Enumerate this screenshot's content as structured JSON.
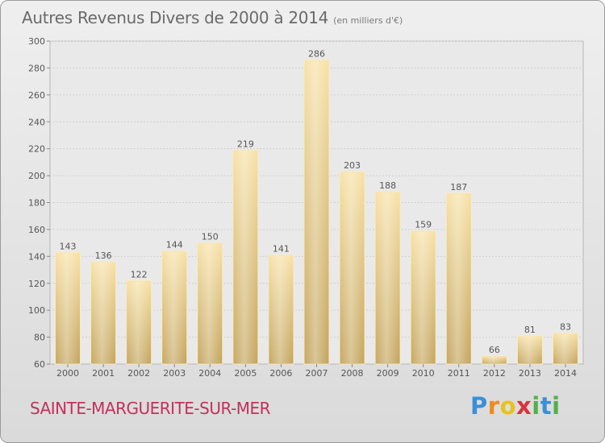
{
  "header": {
    "title": "Autres Revenus Divers de 2000 à 2014",
    "unit": "(en milliers d'€)"
  },
  "footer": {
    "commune": "SAINTE-MARGUERITE-SUR-MER",
    "logo": [
      "P",
      "r",
      "o",
      "x",
      "i",
      "t",
      "i"
    ]
  },
  "colors": {
    "bar_light": "#f5dd9e",
    "bar_dark": "#c6a861",
    "commune": "#c4305d"
  },
  "chart_data": {
    "type": "bar",
    "title": "Autres Revenus Divers de 2000 à 2014",
    "xlabel": "",
    "ylabel": "",
    "categories": [
      "2000",
      "2001",
      "2002",
      "2003",
      "2004",
      "2005",
      "2006",
      "2007",
      "2008",
      "2009",
      "2010",
      "2011",
      "2012",
      "2013",
      "2014"
    ],
    "values": [
      143,
      136,
      122,
      144,
      150,
      219,
      141,
      286,
      203,
      188,
      159,
      187,
      66,
      81,
      83
    ],
    "ylim": [
      60,
      300
    ],
    "yticks": [
      60,
      80,
      100,
      120,
      140,
      160,
      180,
      200,
      220,
      240,
      260,
      280,
      300
    ],
    "grid": true,
    "legend": "none"
  }
}
